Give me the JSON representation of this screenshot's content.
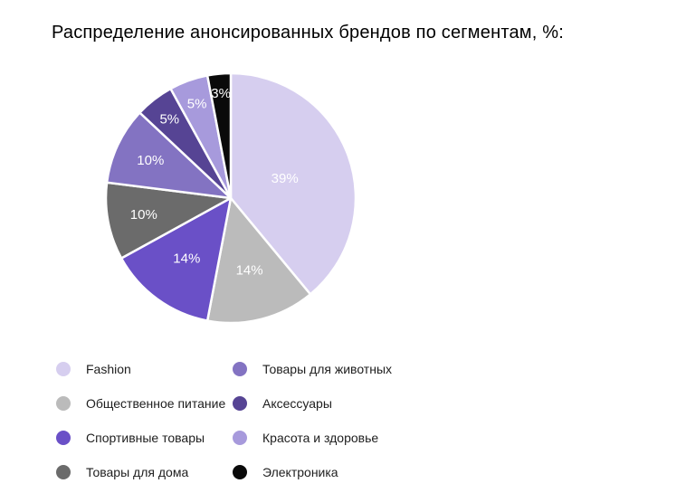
{
  "title": "Распределение анонсированных брендов по сегментам, %:",
  "chart_data": {
    "type": "pie",
    "title": "Распределение анонсированных брендов по сегментам, %:",
    "start_angle_deg": 0,
    "direction": "clockwise",
    "total": 100,
    "slice_border_color": "#ffffff",
    "label_color": "#ffffff",
    "legend_position": "bottom",
    "legend_columns": 2,
    "background_color": "#ffffff",
    "slices": [
      {
        "label": "Fashion",
        "value": 39,
        "display": "39%",
        "color": "#d6ceef"
      },
      {
        "label": "Общественное питание",
        "value": 14,
        "display": "14%",
        "color": "#bbbbbb"
      },
      {
        "label": "Спортивные товары",
        "value": 14,
        "display": "14%",
        "color": "#6a50c7"
      },
      {
        "label": "Товары для дома",
        "value": 10,
        "display": "10%",
        "color": "#6b6b6b"
      },
      {
        "label": "Товары для животных",
        "value": 10,
        "display": "10%",
        "color": "#8373c2"
      },
      {
        "label": "Аксессуары",
        "value": 5,
        "display": "5%",
        "color": "#564494"
      },
      {
        "label": "Красота и здоровье",
        "value": 5,
        "display": "5%",
        "color": "#a79adc"
      },
      {
        "label": "Электроника",
        "value": 3,
        "display": "3%",
        "color": "#0a0a0a"
      }
    ]
  }
}
